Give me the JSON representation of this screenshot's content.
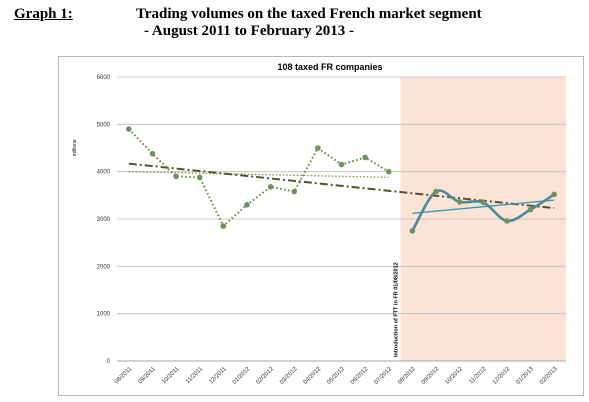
{
  "heading": {
    "label": "Graph 1:",
    "line1": "Trading volumes on the taxed French market segment",
    "line2": "- August 2011 to February 2013 -"
  },
  "chart_data": {
    "type": "line",
    "title": "108 taxed FR companies",
    "ylabel": "millions",
    "xlabel": "",
    "ylim": [
      0,
      6000
    ],
    "yticks": [
      0,
      1000,
      2000,
      3000,
      4000,
      5000,
      6000
    ],
    "ytick_labels": [
      "0",
      "1000",
      "2000",
      "3000",
      "4000",
      "5000",
      "6000"
    ],
    "categories": [
      "08/2011",
      "09/2011",
      "10/2011",
      "11/2011",
      "12/2011",
      "01/2012",
      "02/2012",
      "03/2012",
      "04/2012",
      "05/2012",
      "06/2012",
      "07/2012",
      "08/2012",
      "09/2012",
      "10/2012",
      "11/2012",
      "12/2012",
      "01/2013",
      "02/2013"
    ],
    "grid": true,
    "series": [
      {
        "style": "dotted-with-markers",
        "color": "#6b8e3e",
        "values": [
          4900,
          4380,
          3900,
          3880,
          2850,
          3300,
          3680,
          3580,
          4500,
          4150,
          4300,
          4000,
          null,
          null,
          null,
          null,
          null,
          null,
          null
        ]
      },
      {
        "style": "solid-smooth-with-markers",
        "color": "#4a8a9a",
        "values": [
          null,
          null,
          null,
          null,
          null,
          null,
          null,
          null,
          null,
          null,
          null,
          null,
          2750,
          3580,
          3360,
          3350,
          2960,
          3200,
          3520
        ]
      }
    ],
    "trendlines": [
      {
        "style": "dotted",
        "color": "#7a9a3a",
        "from": [
          "08/2011",
          4000
        ],
        "to": [
          "07/2012",
          3880
        ]
      },
      {
        "style": "dash-dot",
        "color": "#5a5030",
        "from": [
          "08/2011",
          4170
        ],
        "to": [
          "02/2013",
          3230
        ]
      },
      {
        "style": "solid",
        "color": "#3a9aaa",
        "from": [
          "08/2012",
          3120
        ],
        "to": [
          "02/2013",
          3400
        ]
      }
    ],
    "shaded_region": {
      "from": "08/2012",
      "to": "02/2013",
      "color": "#fbe3d6"
    },
    "annotation": "Introduction of FTT in FR 01/08/2012"
  }
}
